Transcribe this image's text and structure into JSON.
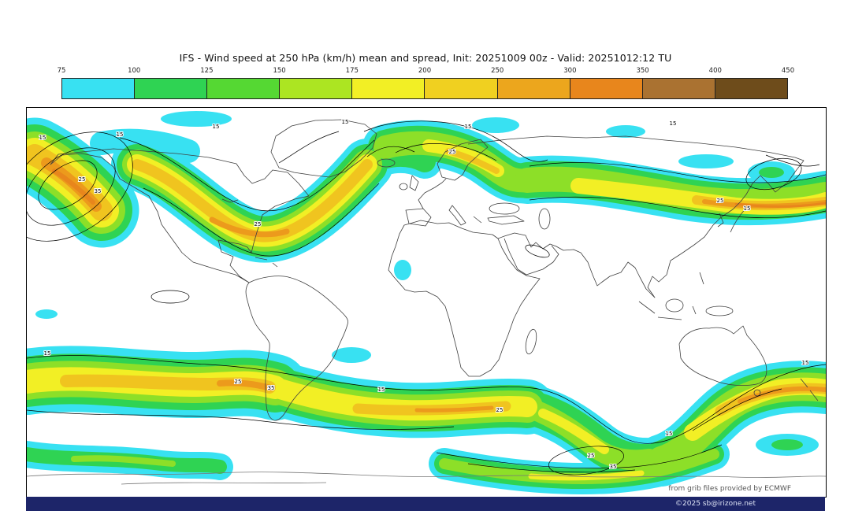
{
  "header": {
    "title": "IFS - Wind speed at 250 hPa (km/h) mean and spread, Init: 20251009 00z - Valid: 20251012:12 TU"
  },
  "map": {
    "attribution": "from grib files provided by ECMWF",
    "copyright": "©2025 sb@irizone.net",
    "contour_labels": [
      "15",
      "25",
      "35"
    ]
  },
  "chart_data": {
    "type": "heatmap",
    "title": "IFS - Wind speed at 250 hPa (km/h) mean and spread, Init: 20251009 00z - Valid: 20251012:12 TU",
    "model": "IFS",
    "variable": "Wind speed at 250 hPa",
    "statistic": "mean and spread",
    "units": "km/h",
    "init": "20251009 00z",
    "valid": "20251012:12 TU",
    "projection": "equirectangular global (90N-90S, 180W-180E)",
    "legend_position": "top",
    "colorbar": {
      "levels": [
        75,
        100,
        125,
        150,
        175,
        200,
        250,
        300,
        350,
        400,
        450
      ],
      "colors": [
        "#38e1f2",
        "#2fd353",
        "#55d833",
        "#ace522",
        "#f2ef25",
        "#f0d020",
        "#eca61d",
        "#e8861c",
        "#aa7231",
        "#6e4c1b"
      ],
      "units": "km/h"
    },
    "spread_contour_levels": [
      15,
      25,
      35
    ],
    "features": [
      {
        "region": "North Atlantic near left map edge (~55N)",
        "peak_band": "250-300 km/h jet core, high spread contours 15/25/35"
      },
      {
        "region": "North America trough (dips over central US, exits northeast)",
        "peak_band": "200-250 km/h"
      },
      {
        "region": "Northern Europe / Scandinavia",
        "peak_band": "175-225 km/h"
      },
      {
        "region": "East Asia - Northwest Pacific jet (~40N)",
        "peak_band": "250-300 km/h core east of Japan"
      },
      {
        "region": "Southern Hemisphere circumpolar jet (~45-55S)",
        "peak_band": "200-300 km/h; cores west of southern South America, central South Atlantic, and south of Australia into South Pacific"
      },
      {
        "region": "Antarctic secondary band (~65S, Indian Ocean sector)",
        "peak_band": "125-175 km/h with 25/35 spread contours"
      },
      {
        "region": "Scattered 75-100 km/h cyan patches",
        "peak_band": "tropics and polar fringes"
      }
    ]
  }
}
